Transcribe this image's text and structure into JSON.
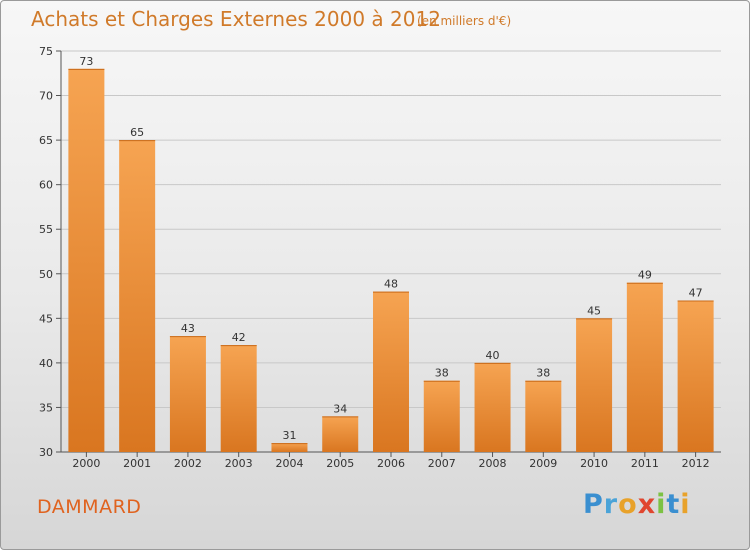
{
  "header": {
    "title": "Achats et Charges Externes 2000 à 2012",
    "unit": "(en milliers d'€)"
  },
  "footer": {
    "commune": "DAMMARD",
    "logo": [
      "P",
      "r",
      "o",
      "x",
      "i",
      "t",
      "i"
    ]
  },
  "colors": {
    "bar_top": "#f6a452",
    "bar_bottom": "#d97620",
    "accent": "#d07a2a",
    "logo": [
      "#3a8fd0",
      "#4aa3d8",
      "#e8a22a",
      "#e0462f",
      "#7cc243",
      "#3a8fd0",
      "#e8a22a"
    ]
  },
  "chart_data": {
    "type": "bar",
    "title": "Achats et Charges Externes 2000 à 2012",
    "subtitle": "(en milliers d'€)",
    "categories": [
      "2000",
      "2001",
      "2002",
      "2003",
      "2004",
      "2005",
      "2006",
      "2007",
      "2008",
      "2009",
      "2010",
      "2011",
      "2012"
    ],
    "values": [
      73,
      65,
      43,
      42,
      31,
      34,
      48,
      38,
      40,
      38,
      45,
      49,
      47
    ],
    "ylim": [
      30,
      75
    ],
    "yticks": [
      30,
      35,
      40,
      45,
      50,
      55,
      60,
      65,
      70,
      75
    ],
    "grid": true,
    "data_labels": true
  }
}
